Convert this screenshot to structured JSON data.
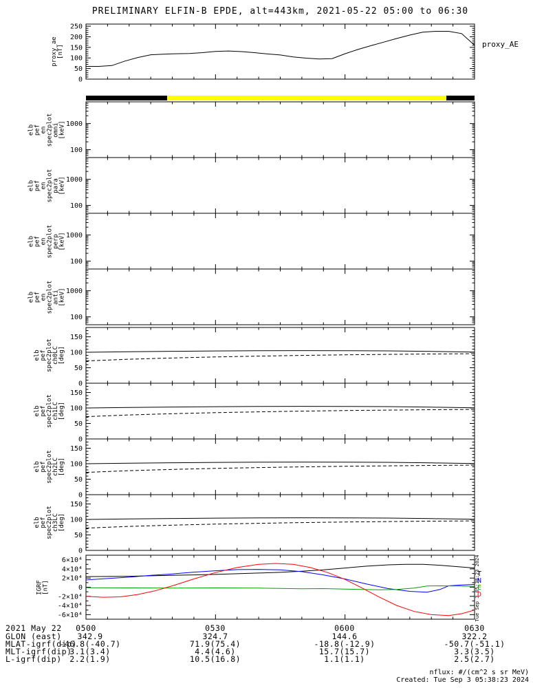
{
  "title": "PRELIMINARY ELFIN-B EPDE, alt=443km, 2021-05-22 05:00 to 06:30",
  "time_axis": {
    "start_min": 0,
    "end_min": 90,
    "major_ticks_min": [
      0,
      30,
      60,
      90
    ],
    "minor_step_min": 5,
    "labels": [
      "0500",
      "0530",
      "0600",
      "0630"
    ]
  },
  "sun_bar": {
    "segments": [
      {
        "color": "#000000",
        "from_min": 0,
        "to_min": 18.8
      },
      {
        "color": "#ffff00",
        "from_min": 18.8,
        "to_min": 83.4
      },
      {
        "color": "#000000",
        "from_min": 83.4,
        "to_min": 90
      }
    ]
  },
  "chart_data": [
    {
      "id": "proxy",
      "type": "line",
      "ylabel": "proxy_ae\n[nT]",
      "right_label": "proxy_AE",
      "ylim": [
        0,
        260
      ],
      "yticks": [
        0,
        50,
        100,
        150,
        200,
        250
      ],
      "y_minor_step": 10,
      "x_minutes": [
        0,
        3,
        6,
        9,
        12,
        15,
        18,
        21,
        24,
        27,
        30,
        33,
        36,
        39,
        42,
        45,
        48,
        51,
        54,
        57,
        60,
        63,
        66,
        69,
        72,
        75,
        78,
        81,
        84,
        87,
        90
      ],
      "series": [
        {
          "name": "proxy_AE",
          "color": "#000000",
          "y": [
            60,
            60,
            64,
            85,
            102,
            115,
            118,
            120,
            121,
            125,
            131,
            133,
            130,
            125,
            119,
            114,
            105,
            99,
            95,
            97,
            120,
            140,
            158,
            175,
            192,
            208,
            222,
            226,
            226,
            215,
            160
          ]
        }
      ]
    },
    {
      "id": "omni",
      "type": "spectrogram-empty",
      "scale": "log",
      "ylabel": "elb\npef\nen\nspec2plot\nomni\n[keV]",
      "ylim": [
        50,
        6800
      ],
      "yticks": [
        100,
        1000
      ]
    },
    {
      "id": "para",
      "type": "spectrogram-empty",
      "scale": "log",
      "ylabel": "elb\npef\nen\nspec2plot\npara\n[keV]",
      "ylim": [
        50,
        6800
      ],
      "yticks": [
        100,
        1000
      ]
    },
    {
      "id": "perp",
      "type": "spectrogram-empty",
      "scale": "log",
      "ylabel": "elb\npef\nen\nspec2plot\nperp\n[keV]",
      "ylim": [
        50,
        6800
      ],
      "yticks": [
        100,
        1000
      ]
    },
    {
      "id": "anti",
      "type": "spectrogram-empty",
      "scale": "log",
      "ylabel": "elb\npef\nen\nspec2plot\nanti\n[keV]",
      "ylim": [
        50,
        6800
      ],
      "yticks": [
        100,
        1000
      ]
    },
    {
      "id": "ch0",
      "type": "line",
      "ylabel": "elb\npef\nspec2plot\nch0LC\n[deg]",
      "ylim": [
        0,
        180
      ],
      "yticks": [
        0,
        50,
        100,
        150
      ],
      "y_minor_step": 10,
      "x_minutes": [
        0,
        10,
        20,
        30,
        40,
        50,
        60,
        70,
        80,
        90
      ],
      "series": [
        {
          "name": "loss-cone",
          "color": "#000000",
          "y": [
            100,
            101.5,
            103,
            104.2,
            105,
            105.4,
            105.2,
            104.4,
            102.6,
            100.5
          ]
        },
        {
          "name": "anti-loss-cone",
          "color": "#000000",
          "dash": true,
          "y": [
            72,
            77.5,
            81.5,
            84.8,
            87.5,
            89.8,
            91.8,
            93.2,
            94.4,
            95.4
          ]
        }
      ]
    },
    {
      "id": "ch1",
      "type": "line",
      "ylabel": "elb\npef\nspec2plot\nch1LC\n[deg]",
      "ylim": [
        0,
        180
      ],
      "yticks": [
        0,
        50,
        100,
        150
      ],
      "y_minor_step": 10,
      "x_minutes": [
        0,
        10,
        20,
        30,
        40,
        50,
        60,
        70,
        80,
        90
      ],
      "series": [
        {
          "name": "loss-cone",
          "color": "#000000",
          "y": [
            100,
            101.5,
            103,
            104.2,
            105,
            105.4,
            105.2,
            104.4,
            102.6,
            100.5
          ]
        },
        {
          "name": "anti-loss-cone",
          "color": "#000000",
          "dash": true,
          "y": [
            72,
            77.5,
            81.5,
            84.8,
            87.5,
            89.8,
            91.8,
            93.2,
            94.4,
            95.4
          ]
        }
      ]
    },
    {
      "id": "ch2",
      "type": "line",
      "ylabel": "elb\npef\nspec2plot\nch2LC\n[deg]",
      "ylim": [
        0,
        180
      ],
      "yticks": [
        0,
        50,
        100,
        150
      ],
      "y_minor_step": 10,
      "x_minutes": [
        0,
        10,
        20,
        30,
        40,
        50,
        60,
        70,
        80,
        90
      ],
      "series": [
        {
          "name": "loss-cone",
          "color": "#000000",
          "y": [
            100,
            101.5,
            103,
            104.2,
            105,
            105.4,
            105.2,
            104.4,
            102.6,
            100.5
          ]
        },
        {
          "name": "anti-loss-cone",
          "color": "#000000",
          "dash": true,
          "y": [
            72,
            77.5,
            81.5,
            84.8,
            87.5,
            89.8,
            91.8,
            93.2,
            94.4,
            95.4
          ]
        }
      ]
    },
    {
      "id": "ch3",
      "type": "line",
      "ylabel": "elb\npef\nspec2plot\nch3LC\n[deg]",
      "ylim": [
        0,
        180
      ],
      "yticks": [
        0,
        50,
        100,
        150
      ],
      "y_minor_step": 10,
      "x_minutes": [
        0,
        10,
        20,
        30,
        40,
        50,
        60,
        70,
        80,
        90
      ],
      "series": [
        {
          "name": "loss-cone",
          "color": "#000000",
          "y": [
            100,
            101.5,
            103,
            104.2,
            105,
            105.4,
            105.2,
            104.4,
            102.6,
            100.5
          ]
        },
        {
          "name": "anti-loss-cone",
          "color": "#000000",
          "dash": true,
          "y": [
            72,
            77.5,
            81.5,
            84.8,
            87.5,
            89.8,
            91.8,
            93.2,
            94.4,
            95.4
          ]
        }
      ]
    },
    {
      "id": "igrf",
      "type": "line",
      "ylabel": "IGRF\n[nT]",
      "ylim": [
        -70000,
        70000
      ],
      "yticks": [
        -60000,
        -40000,
        -20000,
        0,
        20000,
        40000,
        60000
      ],
      "ytick_labels": [
        "-6×10⁴",
        "-4×10⁴",
        "-2×10⁴",
        "0",
        "2×10⁴",
        "4×10⁴",
        "6×10⁴"
      ],
      "y_minor_step": 10000,
      "right_labels": [
        {
          "text": "T",
          "color": "#000000"
        },
        {
          "text": "N",
          "color": "#0000ff"
        },
        {
          "text": "E",
          "color": "#00a000"
        },
        {
          "text": "D",
          "color": "#ff0000"
        }
      ],
      "series": [
        {
          "name": "T",
          "color": "#000000",
          "x": [
            0,
            5,
            10,
            15,
            20,
            25,
            30,
            35,
            40,
            45,
            50,
            55,
            60,
            65,
            70,
            74,
            78,
            82,
            86,
            90
          ],
          "y": [
            23000,
            23500,
            24000,
            25000,
            26000,
            27000,
            28000,
            29500,
            31000,
            32500,
            35000,
            38000,
            42000,
            46000,
            49000,
            50000,
            50000,
            48000,
            45000,
            42000
          ]
        },
        {
          "name": "N",
          "color": "#0000ff",
          "x": [
            0,
            5,
            10,
            15,
            20,
            25,
            30,
            35,
            40,
            45,
            50,
            55,
            60,
            65,
            70,
            75,
            79,
            82,
            84,
            87,
            90
          ],
          "y": [
            16000,
            19000,
            22000,
            26000,
            29000,
            33000,
            36000,
            38500,
            39000,
            38000,
            34000,
            27000,
            18000,
            7000,
            -3000,
            -9000,
            -11000,
            -5000,
            3000,
            5000,
            6000
          ]
        },
        {
          "name": "E",
          "color": "#00a000",
          "x": [
            0,
            10,
            20,
            30,
            40,
            50,
            55,
            60,
            64,
            68,
            72,
            76,
            79,
            82,
            86,
            90
          ],
          "y": [
            -1000,
            -1500,
            -2000,
            -1500,
            -2000,
            -3500,
            -3000,
            -4000,
            -5000,
            -5500,
            -5000,
            -2000,
            2500,
            3000,
            2500,
            2000
          ]
        },
        {
          "name": "D",
          "color": "#ff0000",
          "x": [
            0,
            4,
            8,
            12,
            16,
            20,
            25,
            30,
            35,
            40,
            44,
            48,
            52,
            56,
            60,
            64,
            68,
            72,
            76,
            80,
            84,
            87,
            90
          ],
          "y": [
            -20000,
            -22000,
            -21000,
            -16000,
            -8000,
            3000,
            18000,
            32000,
            43000,
            50000,
            52000,
            50000,
            43000,
            32000,
            17000,
            -2000,
            -22000,
            -40000,
            -53000,
            -60000,
            -62000,
            -58000,
            -50000
          ]
        }
      ]
    }
  ],
  "footer": {
    "date_label": "2021 May 22",
    "rows": [
      {
        "label": "GLON (east)",
        "values": [
          "342.9",
          "324.7",
          "144.6",
          "322.2"
        ]
      },
      {
        "label": "MLAT-igrf(dip)",
        "values": [
          "-46.8(-40.7)",
          "71.9(75.4)",
          "-18.8(-12.9)",
          "-50.7(-51.1)"
        ]
      },
      {
        "label": "MLT-igrf(dip)",
        "values": [
          "3.1(3.4)",
          "4.4(4.6)",
          "15.7(15.7)",
          "3.3(3.5)"
        ]
      },
      {
        "label": "L-igrf(dip)",
        "values": [
          "2.2(1.9)",
          "10.5(16.8)",
          "1.1(1.1)",
          "2.5(2.7)"
        ]
      }
    ]
  },
  "credits": {
    "nflux": "nflux: #/(cm^2 s sr MeV)",
    "created": "Created: Tue Sep  3 05:38:23 2024",
    "vertical_timestamp": "Tue Sep  3 05:38:23 2024"
  }
}
